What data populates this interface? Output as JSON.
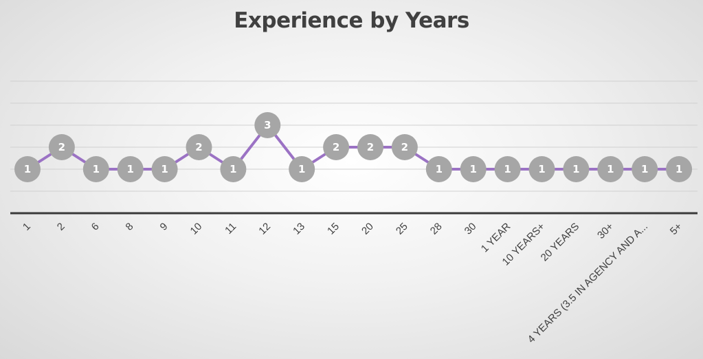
{
  "chart_data": {
    "type": "line",
    "title": "Experience by Years",
    "categories": [
      "1",
      "2",
      "6",
      "8",
      "9",
      "10",
      "11",
      "12",
      "13",
      "15",
      "20",
      "25",
      "28",
      "30",
      "1 YEAR",
      "10 YEARS+",
      "20 YEARS",
      "30+",
      "4 YEARS (3.5 IN AGENCY AND A...",
      "5+"
    ],
    "series": [
      {
        "values": [
          1,
          2,
          1,
          1,
          1,
          2,
          1,
          3,
          1,
          2,
          2,
          2,
          1,
          1,
          1,
          1,
          1,
          1,
          1,
          1
        ]
      }
    ],
    "ylim": [
      -1,
      4
    ],
    "grid": true,
    "legend": "none",
    "data_labels": true,
    "line_color": "#9b72c4",
    "marker_color": "#a6a6a6",
    "axis_color": "#3a3a3a"
  }
}
